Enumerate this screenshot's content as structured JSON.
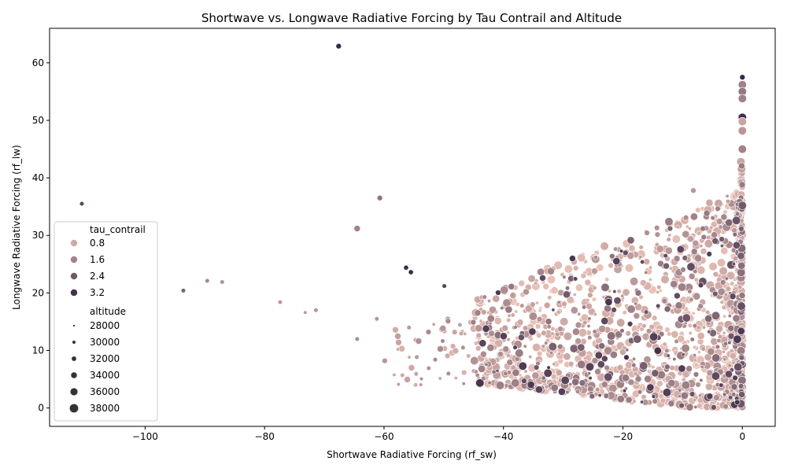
{
  "chart_data": {
    "type": "scatter",
    "title": "Shortwave vs. Longwave Radiative Forcing by Tau Contrail and Altitude",
    "xlabel": "Shortwave Radiative Forcing (rf_sw)",
    "ylabel": "Longwave Radiative Forcing (rf_lw)",
    "xlim": [
      -116,
      5.5
    ],
    "ylim": [
      -3.2,
      66
    ],
    "xticks": [
      -100,
      -80,
      -60,
      -40,
      -20,
      0
    ],
    "xtick_labels": [
      "−100",
      "−80",
      "−60",
      "−40",
      "−20",
      "0"
    ],
    "yticks": [
      0,
      10,
      20,
      30,
      40,
      50,
      60
    ],
    "ytick_labels": [
      "0",
      "10",
      "20",
      "30",
      "40",
      "50",
      "60"
    ],
    "grid": false,
    "legend_placement": "lower-left",
    "hue": {
      "name": "tau_contrail",
      "entries": [
        "0.8",
        "1.6",
        "2.4",
        "3.2"
      ],
      "values": [
        0.8,
        1.6,
        2.4,
        3.2
      ],
      "color_low": "#ecc3b8",
      "color_high": "#2d1e3e"
    },
    "size": {
      "name": "altitude",
      "entries": [
        "28000",
        "30000",
        "32000",
        "34000",
        "36000",
        "38000"
      ],
      "values": [
        28000,
        30000,
        32000,
        34000,
        36000,
        38000
      ]
    },
    "notable_points": [
      {
        "x": -67.6,
        "y": 62.9,
        "tau_contrail": 3.4,
        "altitude": 32000
      },
      {
        "x": -110.6,
        "y": 35.5,
        "tau_contrail": 2.8,
        "altitude": 30000
      },
      {
        "x": -60.7,
        "y": 36.5,
        "tau_contrail": 1.9,
        "altitude": 32000
      },
      {
        "x": -64.5,
        "y": 31.2,
        "tau_contrail": 1.6,
        "altitude": 34000
      },
      {
        "x": -56.3,
        "y": 24.4,
        "tau_contrail": 3.3,
        "altitude": 31000
      },
      {
        "x": -55.5,
        "y": 23.6,
        "tau_contrail": 3.4,
        "altitude": 31000
      },
      {
        "x": -49.9,
        "y": 21.2,
        "tau_contrail": 2.9,
        "altitude": 30000
      },
      {
        "x": -93.6,
        "y": 20.4,
        "tau_contrail": 2.3,
        "altitude": 30000
      },
      {
        "x": -89.6,
        "y": 22.1,
        "tau_contrail": 1.5,
        "altitude": 30000
      },
      {
        "x": -87.1,
        "y": 21.9,
        "tau_contrail": 1.3,
        "altitude": 30000
      },
      {
        "x": -77.4,
        "y": 18.4,
        "tau_contrail": 1.1,
        "altitude": 30000
      },
      {
        "x": -73.2,
        "y": 16.6,
        "tau_contrail": 1.2,
        "altitude": 28000
      },
      {
        "x": -71.4,
        "y": 17.0,
        "tau_contrail": 1.2,
        "altitude": 30000
      },
      {
        "x": -64.5,
        "y": 12.0,
        "tau_contrail": 1.4,
        "altitude": 30000
      },
      {
        "x": -61.2,
        "y": 15.5,
        "tau_contrail": 1.2,
        "altitude": 30000
      },
      {
        "x": 0.0,
        "y": 57.5,
        "tau_contrail": 3.4,
        "altitude": 32000
      },
      {
        "x": 0.0,
        "y": 56.2,
        "tau_contrail": 1.6,
        "altitude": 38000
      },
      {
        "x": 0.0,
        "y": 55.0,
        "tau_contrail": 1.8,
        "altitude": 38000
      },
      {
        "x": 0.0,
        "y": 53.8,
        "tau_contrail": 1.6,
        "altitude": 38000
      },
      {
        "x": 0.0,
        "y": 50.5,
        "tau_contrail": 3.3,
        "altitude": 38000
      },
      {
        "x": 0.0,
        "y": 49.8,
        "tau_contrail": 0.9,
        "altitude": 38000
      },
      {
        "x": 0.0,
        "y": 48.2,
        "tau_contrail": 1.2,
        "altitude": 38000
      },
      {
        "x": 0.0,
        "y": 45.0,
        "tau_contrail": 1.6,
        "altitude": 38000
      },
      {
        "x": 0.0,
        "y": 35.2,
        "tau_contrail": 2.4,
        "altitude": 38000
      },
      {
        "x": -8.2,
        "y": 37.8,
        "tau_contrail": 1.2,
        "altitude": 32000
      },
      {
        "x": -2.4,
        "y": 35.9,
        "tau_contrail": 1.0,
        "altitude": 30000
      },
      {
        "x": -14.3,
        "y": 31.3,
        "tau_contrail": 1.3,
        "altitude": 32000
      },
      {
        "x": -12.1,
        "y": 31.2,
        "tau_contrail": 2.2,
        "altitude": 32000
      },
      {
        "x": -21.8,
        "y": 26.4,
        "tau_contrail": 1.9,
        "altitude": 32000
      },
      {
        "x": -18.8,
        "y": 14.6,
        "tau_contrail": 2.9,
        "altitude": 32000
      },
      {
        "x": -19.4,
        "y": 8.8,
        "tau_contrail": 3.2,
        "altitude": 32000
      }
    ]
  }
}
